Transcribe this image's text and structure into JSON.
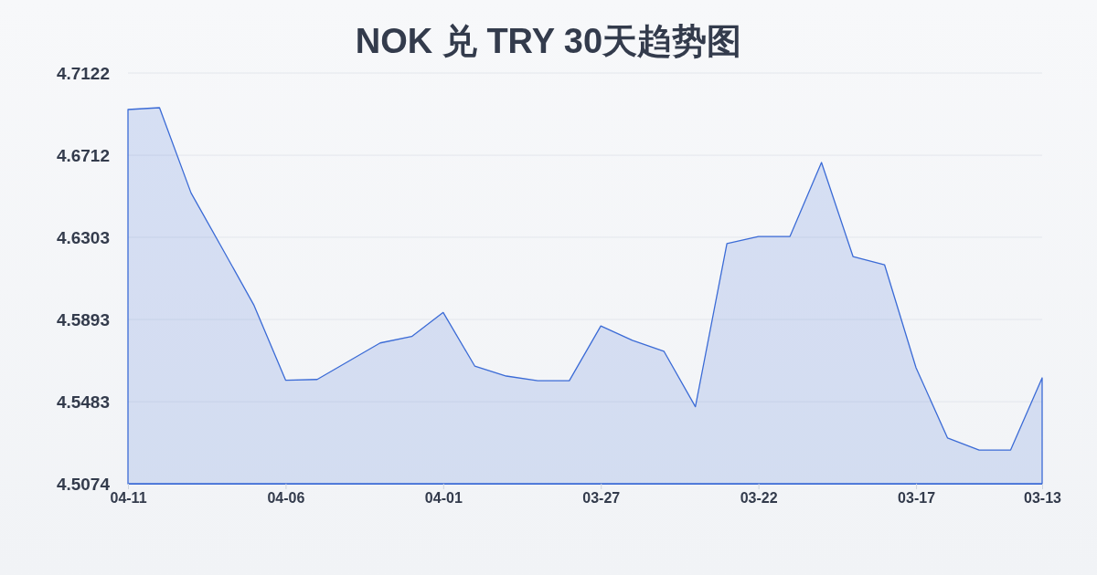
{
  "chart_data": {
    "type": "area",
    "title": "NOK 兑 TRY 30天趋势图",
    "categories": [
      "04-11",
      null,
      null,
      null,
      null,
      "04-06",
      null,
      null,
      null,
      null,
      "04-01",
      null,
      null,
      null,
      null,
      "03-27",
      null,
      null,
      null,
      null,
      "03-22",
      null,
      null,
      null,
      null,
      "03-17",
      null,
      null,
      null,
      "03-13"
    ],
    "values": [
      4.694,
      4.6949,
      4.6524,
      4.6245,
      4.5963,
      4.559,
      4.5594,
      4.5685,
      4.5776,
      4.5808,
      4.5928,
      4.5661,
      4.5611,
      4.5588,
      4.5588,
      4.5861,
      4.5789,
      4.5735,
      4.5458,
      4.6271,
      4.6307,
      4.6307,
      4.6676,
      4.6207,
      4.6166,
      4.5652,
      4.5302,
      4.5242,
      4.5242,
      4.5602
    ],
    "color": "#3b6bd6",
    "ylim": [
      4.5074,
      4.7122
    ],
    "yticks": [
      4.5074,
      4.5483,
      4.5893,
      4.6303,
      4.6712,
      4.7122
    ],
    "grid": "y"
  }
}
